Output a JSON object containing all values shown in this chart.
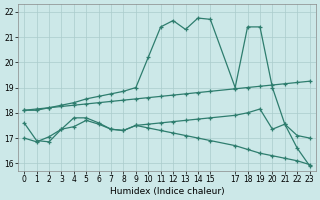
{
  "xlabel": "Humidex (Indice chaleur)",
  "bg_color": "#cce8e8",
  "line_color": "#2e7d6e",
  "grid_color": "#aacccc",
  "xlim": [
    -0.5,
    23.5
  ],
  "ylim": [
    15.7,
    22.3
  ],
  "yticks": [
    16,
    17,
    18,
    19,
    20,
    21,
    22
  ],
  "xticks": [
    0,
    1,
    2,
    3,
    4,
    5,
    6,
    7,
    8,
    9,
    10,
    11,
    12,
    13,
    14,
    15,
    17,
    18,
    19,
    20,
    21,
    22,
    23
  ],
  "lines": [
    {
      "x": [
        0,
        1,
        2,
        3,
        4,
        5,
        6,
        7,
        8,
        9,
        10,
        11,
        12,
        13,
        14,
        15,
        17,
        18,
        19,
        20,
        21,
        22,
        23
      ],
      "y": [
        18.1,
        18.1,
        18.2,
        18.3,
        18.4,
        18.55,
        18.65,
        18.75,
        18.85,
        19.0,
        20.2,
        21.4,
        21.65,
        21.3,
        21.75,
        21.7,
        19.0,
        21.4,
        21.4,
        19.0,
        17.55,
        16.6,
        15.9
      ]
    },
    {
      "x": [
        0,
        1,
        2,
        3,
        4,
        5,
        6,
        7,
        8,
        9,
        10,
        11,
        12,
        13,
        14,
        15,
        17,
        18,
        19,
        20,
        21,
        22,
        23
      ],
      "y": [
        18.1,
        18.15,
        18.2,
        18.25,
        18.3,
        18.35,
        18.4,
        18.45,
        18.5,
        18.55,
        18.6,
        18.65,
        18.7,
        18.75,
        18.8,
        18.85,
        18.95,
        19.0,
        19.05,
        19.1,
        19.15,
        19.2,
        19.25
      ]
    },
    {
      "x": [
        0,
        1,
        2,
        3,
        4,
        5,
        6,
        7,
        8,
        9,
        10,
        11,
        12,
        13,
        14,
        15,
        17,
        18,
        19,
        20,
        21,
        22,
        23
      ],
      "y": [
        17.6,
        16.9,
        16.85,
        17.35,
        17.8,
        17.8,
        17.6,
        17.35,
        17.3,
        17.5,
        17.4,
        17.3,
        17.2,
        17.1,
        17.0,
        16.9,
        16.7,
        16.55,
        16.4,
        16.3,
        16.2,
        16.1,
        15.95
      ]
    },
    {
      "x": [
        0,
        1,
        2,
        3,
        4,
        5,
        6,
        7,
        8,
        9,
        10,
        11,
        12,
        13,
        14,
        15,
        17,
        18,
        19,
        20,
        21,
        22,
        23
      ],
      "y": [
        17.0,
        16.85,
        17.05,
        17.35,
        17.45,
        17.7,
        17.55,
        17.35,
        17.3,
        17.5,
        17.55,
        17.6,
        17.65,
        17.7,
        17.75,
        17.8,
        17.9,
        18.0,
        18.15,
        17.35,
        17.55,
        17.1,
        17.0
      ]
    }
  ]
}
